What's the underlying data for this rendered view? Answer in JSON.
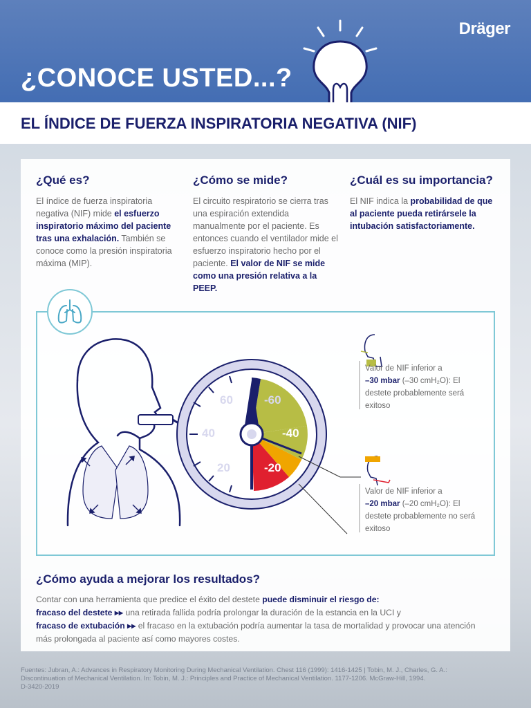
{
  "header": {
    "brand": "Dräger",
    "hero": "¿CONOCE USTED...?",
    "title": "EL ÍNDICE DE FUERZA INSPIRATORIA NEGATIVA (NIF)"
  },
  "columns": [
    {
      "heading": "¿Qué es?",
      "t1": "El índice de fuerza inspiratoria negativa (NIF) mide ",
      "b1": "el esfuerzo inspiratorio máximo del paciente tras una exhalación.",
      "t2": " También se conoce como la presión inspiratoria máxima (MIP)."
    },
    {
      "heading": "¿Cómo se mide?",
      "t1": "El circuito respiratorio se cierra tras una espiración extendida manualmente por el paciente. Es entonces cuando el ventilador mide el esfuerzo inspiratorio hecho por el paciente. ",
      "b1": "El valor de NIF se mide como una presión relativa a la PEEP."
    },
    {
      "heading": "¿Cuál es su importancia?",
      "t1": "El NIF indica la ",
      "b1": "probabilidad de que al paciente pueda retirársele la intubación satisfactoriamente."
    }
  ],
  "gauge": {
    "labels_left": [
      "60",
      "40",
      "20"
    ],
    "labels_right": [
      "-60",
      "-40",
      "-20"
    ],
    "colors": {
      "green": "#b7bd45",
      "orange": "#f0a500",
      "red": "#e0202f",
      "navy": "#1a1f6b",
      "ring": "#d8d8ee"
    }
  },
  "notes": [
    {
      "t1": "Valor de NIF inferior a",
      "b1": "–30 mbar",
      "t2": " (–30 cmH₂O): El destete probablemente será exitoso"
    },
    {
      "t1": "Valor de NIF inferior a",
      "b1": "–20 mbar",
      "t2": " (–20 cmH₂O): El destete probablemente no será exitoso"
    }
  ],
  "improve": {
    "heading": "¿Cómo ayuda a mejorar los resultados?",
    "t1": "Contar con una herramienta que predice el éxito del destete ",
    "b1": "puede disminuir el riesgo de:",
    "b2": "fracaso del destete",
    "arrow": "▸▸",
    "t2": " una retirada fallida podría prolongar la duración de la estancia en la UCI y",
    "b3": "fracaso de extubación",
    "t3": " el fracaso en la extubación podría aumentar la tasa de mortalidad y provocar una atención más prolongada al paciente así como mayores costes."
  },
  "sources": {
    "line1": "Fuentes: Jubran, A.: Advances in Respiratory Monitoring During Mechanical Ventilation. Chest 116 (1999): 1416-1425 | Tobin, M. J., Charles, G. A.:",
    "line2": "Discontinuation of Mechanical Ventilation. In: Tobin, M. J.: Principles and Practice of Mechanical Ventilation. 1177-1206. McGraw-Hill, 1994.",
    "line3": "D-3420-2019"
  }
}
